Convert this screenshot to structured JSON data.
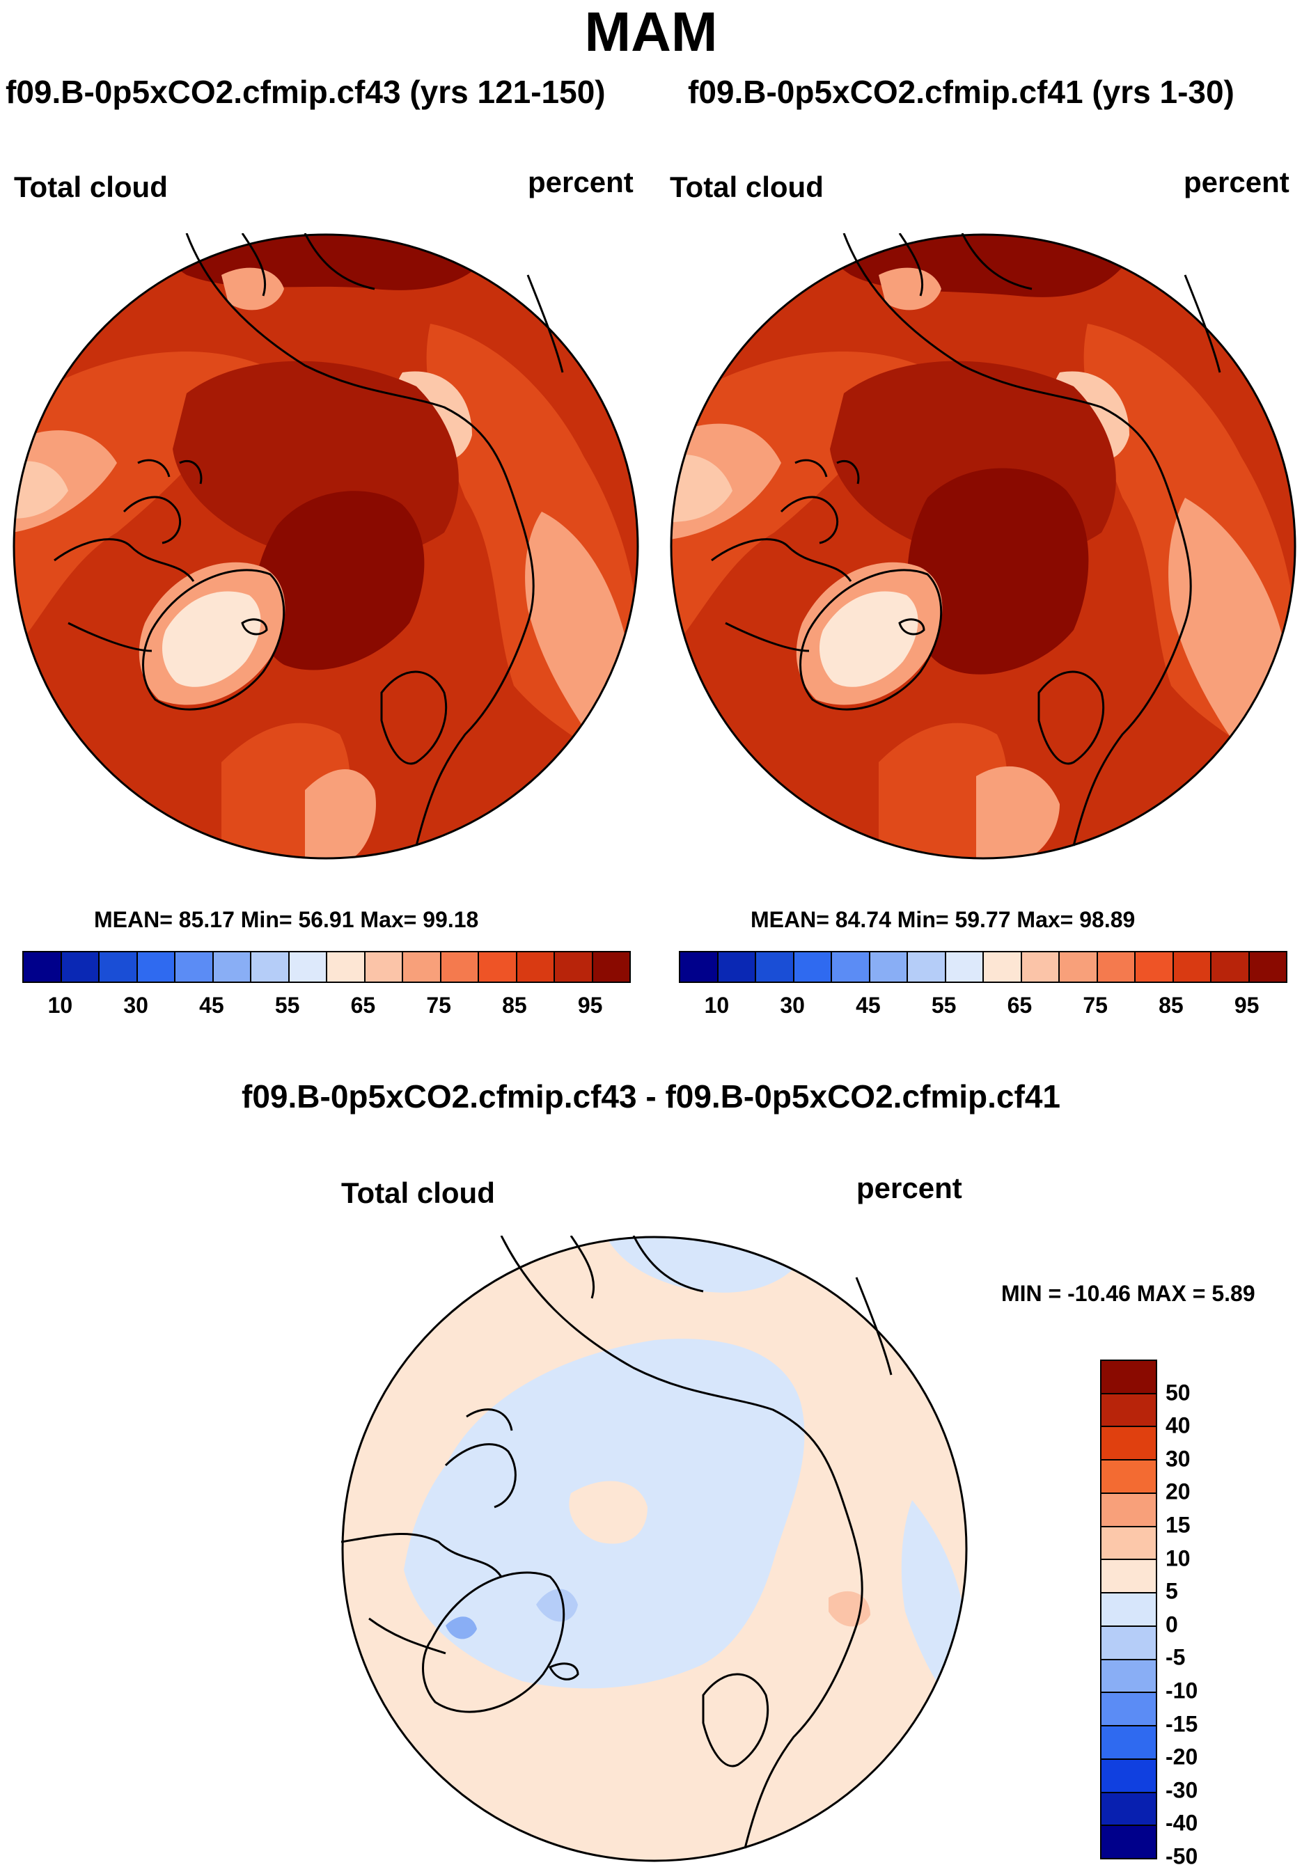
{
  "season": "MAM",
  "left_panel": {
    "case_title": "f09.B-0p5xCO2.cfmip.cf43 (yrs 121-150)",
    "variable": "Total cloud",
    "units": "percent",
    "stats": "MEAN=  85.17  Min=  56.91  Max=  99.18"
  },
  "right_panel": {
    "case_title": "f09.B-0p5xCO2.cfmip.cf41 (yrs 1-30)",
    "variable": "Total cloud",
    "units": "percent",
    "stats": "MEAN=  84.74  Min=  59.77  Max=  98.89"
  },
  "diff_panel": {
    "title": "f09.B-0p5xCO2.cfmip.cf43 - f09.B-0p5xCO2.cfmip.cf41",
    "variable": "Total cloud",
    "units": "percent",
    "stats": "MIN = -10.46 MAX =   5.89"
  },
  "colorbar_abs": {
    "colors": [
      "#00008b",
      "#0a28b4",
      "#1a4ed6",
      "#2f6af0",
      "#5b8cf5",
      "#89aef5",
      "#b5cdf8",
      "#dde9fb",
      "#fde6d4",
      "#fbc4a8",
      "#f8a07a",
      "#f47a4e",
      "#ee5426",
      "#d93a12",
      "#b8240a",
      "#8a0a00"
    ],
    "labels": [
      "10",
      "30",
      "45",
      "55",
      "65",
      "75",
      "85",
      "95"
    ]
  },
  "colorbar_diff": {
    "colors": [
      "#8a0a00",
      "#b8240a",
      "#e0400f",
      "#f36b32",
      "#f8a07a",
      "#fcc8aa",
      "#fde6d4",
      "#d7e6fb",
      "#b5cdf8",
      "#89aef5",
      "#5b8cf5",
      "#2f6af0",
      "#1040e0",
      "#0820b0",
      "#00008b"
    ],
    "labels": [
      "50",
      "40",
      "30",
      "20",
      "15",
      "10",
      "5",
      "0",
      "-5",
      "-10",
      "-15",
      "-20",
      "-30",
      "-40",
      "-50"
    ]
  },
  "map_colors": {
    "dark": "#8a0a00",
    "deep": "#a61a05",
    "mid": "#c8300c",
    "warm": "#e04a1a",
    "orange": "#f07040",
    "salmon": "#f8a07a",
    "light": "#fcc8aa",
    "pale": "#fde6d4",
    "diff_base": "#fde6d4",
    "diff_blue": "#d7e6fb",
    "diff_blue2": "#b5cdf8",
    "diff_blue3": "#89aef5",
    "diff_red": "#fbc4a8"
  }
}
